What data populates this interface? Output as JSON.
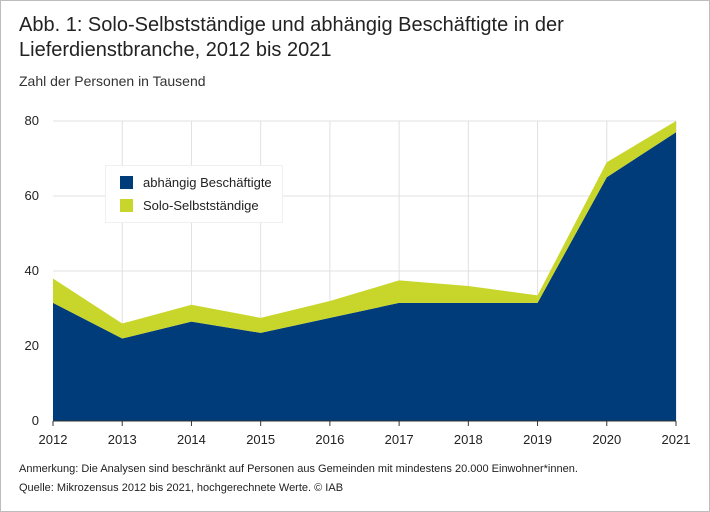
{
  "title": "Abb. 1: Solo-Selbstständige und abhängig Beschäftigte in der Lieferdienstbranche, 2012 bis 2021",
  "subtitle": "Zahl der Personen in Tausend",
  "legend": {
    "items": [
      {
        "label": "abhängig Beschäftigte",
        "color": "#003b7a"
      },
      {
        "label": "Solo-Selbstständige",
        "color": "#c8d62b"
      }
    ]
  },
  "notes": {
    "remark": "Anmerkung: Die Analysen sind beschränkt auf Personen aus Gemeinden mit mindestens 20.000 Einwohner*innen.",
    "source": "Quelle: Mikrozensus  2012 bis 2021, hochgerechnete Werte.  © IAB"
  },
  "chart_data": {
    "type": "area",
    "stacked": true,
    "title": "Abb. 1: Solo-Selbstständige und abhängig Beschäftigte in der Lieferdienstbranche, 2012 bis 2021",
    "ylabel": "Zahl der Personen in Tausend",
    "xlabel": "",
    "categories": [
      "2012",
      "2013",
      "2014",
      "2015",
      "2016",
      "2017",
      "2018",
      "2019",
      "2020",
      "2021"
    ],
    "ylim": [
      0,
      80
    ],
    "yticks": [
      0,
      20,
      40,
      60,
      80
    ],
    "grid": true,
    "legend_position": "upper-left",
    "series": [
      {
        "name": "abhängig Beschäftigte",
        "color": "#003b7a",
        "values": [
          31.5,
          22,
          26.5,
          23.5,
          27.5,
          31.5,
          31.5,
          31.5,
          65,
          77
        ]
      },
      {
        "name": "Solo-Selbstständige",
        "color": "#c8d62b",
        "values": [
          6.5,
          4,
          4.5,
          4,
          4.5,
          6,
          4.5,
          2,
          4,
          3
        ]
      }
    ]
  }
}
